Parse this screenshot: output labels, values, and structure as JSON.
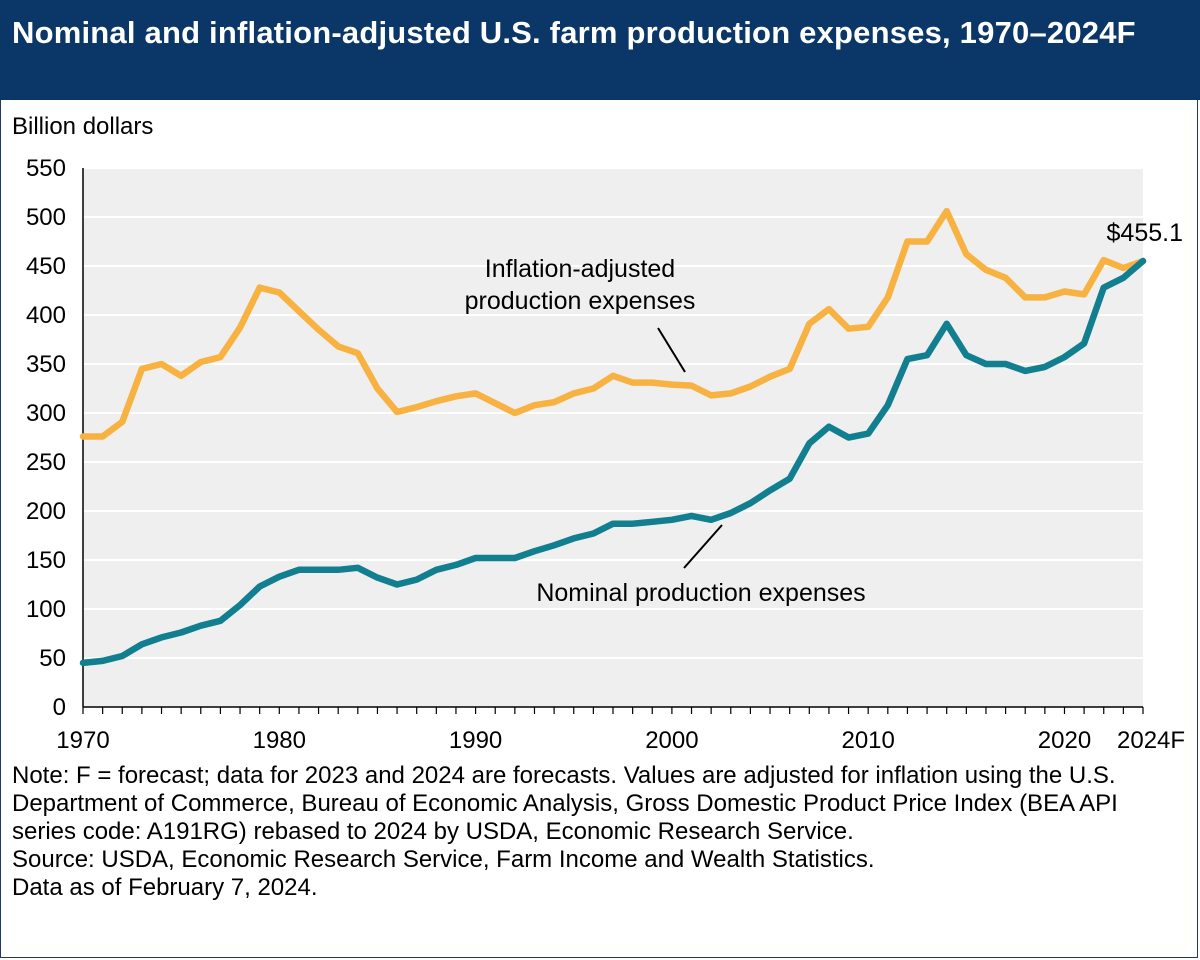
{
  "header": {
    "title": "Nominal and inflation-adjusted U.S. farm production expenses, 1970–2024F"
  },
  "colors": {
    "header_bg": "#0b3668",
    "plot_bg": "#efefef",
    "inflation_adjusted": "#f7b242",
    "nominal": "#117f8f"
  },
  "chart_data": {
    "type": "line",
    "title": "Nominal and inflation-adjusted U.S. farm production expenses, 1970–2024F",
    "ylabel": "Billion dollars",
    "xlabel": "",
    "ylim": [
      0,
      550
    ],
    "xlim": [
      1970,
      2024
    ],
    "yticks": [
      "0",
      "50",
      "100",
      "150",
      "200",
      "250",
      "300",
      "350",
      "400",
      "450",
      "500",
      "550"
    ],
    "xticks": [
      {
        "value": 1970,
        "label": "1970"
      },
      {
        "value": 1980,
        "label": "1980"
      },
      {
        "value": 1990,
        "label": "1990"
      },
      {
        "value": 2000,
        "label": "2000"
      },
      {
        "value": 2010,
        "label": "2010"
      },
      {
        "value": 2020,
        "label": "2020"
      },
      {
        "value": 2024,
        "label": "2024F"
      }
    ],
    "grid": true,
    "x": [
      1970,
      1971,
      1972,
      1973,
      1974,
      1975,
      1976,
      1977,
      1978,
      1979,
      1980,
      1981,
      1982,
      1983,
      1984,
      1985,
      1986,
      1987,
      1988,
      1989,
      1990,
      1991,
      1992,
      1993,
      1994,
      1995,
      1996,
      1997,
      1998,
      1999,
      2000,
      2001,
      2002,
      2003,
      2004,
      2005,
      2006,
      2007,
      2008,
      2009,
      2010,
      2011,
      2012,
      2013,
      2014,
      2015,
      2016,
      2017,
      2018,
      2019,
      2020,
      2021,
      2022,
      2023,
      2024
    ],
    "series": [
      {
        "name": "Inflation-adjusted production expenses",
        "label_lines": [
          "Inflation-adjusted",
          "production expenses"
        ],
        "values": [
          276,
          276,
          291,
          345,
          350,
          338,
          352,
          357,
          387,
          428,
          423,
          404,
          385,
          368,
          361,
          325,
          301,
          306,
          312,
          317,
          320,
          310,
          300,
          308,
          311,
          320,
          325,
          338,
          331,
          331,
          329,
          328,
          318,
          320,
          327,
          337,
          345,
          391,
          406,
          386,
          388,
          418,
          475,
          475,
          506,
          462,
          446,
          438,
          418,
          418,
          424,
          421,
          456,
          448,
          455.1
        ]
      },
      {
        "name": "Nominal production expenses",
        "label_lines": [
          "Nominal production expenses"
        ],
        "values": [
          45,
          47,
          52,
          64,
          71,
          76,
          83,
          88,
          104,
          123,
          133,
          140,
          140,
          140,
          142,
          132,
          125,
          130,
          140,
          145,
          152,
          152,
          152,
          159,
          165,
          172,
          177,
          187,
          187,
          189,
          191,
          195,
          191,
          198,
          208,
          221,
          233,
          269,
          286,
          275,
          279,
          308,
          355,
          359,
          391,
          359,
          350,
          350,
          343,
          347,
          357,
          371,
          428,
          438,
          455.1
        ]
      }
    ],
    "annotations": [
      {
        "text": "$455.1",
        "x": 2024,
        "y": 455.1
      }
    ]
  },
  "notes": {
    "note": "Note: F = forecast; data for 2023 and 2024 are forecasts. Values are adjusted for inflation using the U.S. Department of Commerce, Bureau of Economic Analysis, Gross Domestic Product Price Index (BEA API series code: A191RG) rebased to 2024 by USDA, Economic Research Service.",
    "source": "Source: USDA, Economic Research Service, Farm Income and Wealth Statistics.",
    "data_as_of": "Data as of February 7, 2024."
  }
}
